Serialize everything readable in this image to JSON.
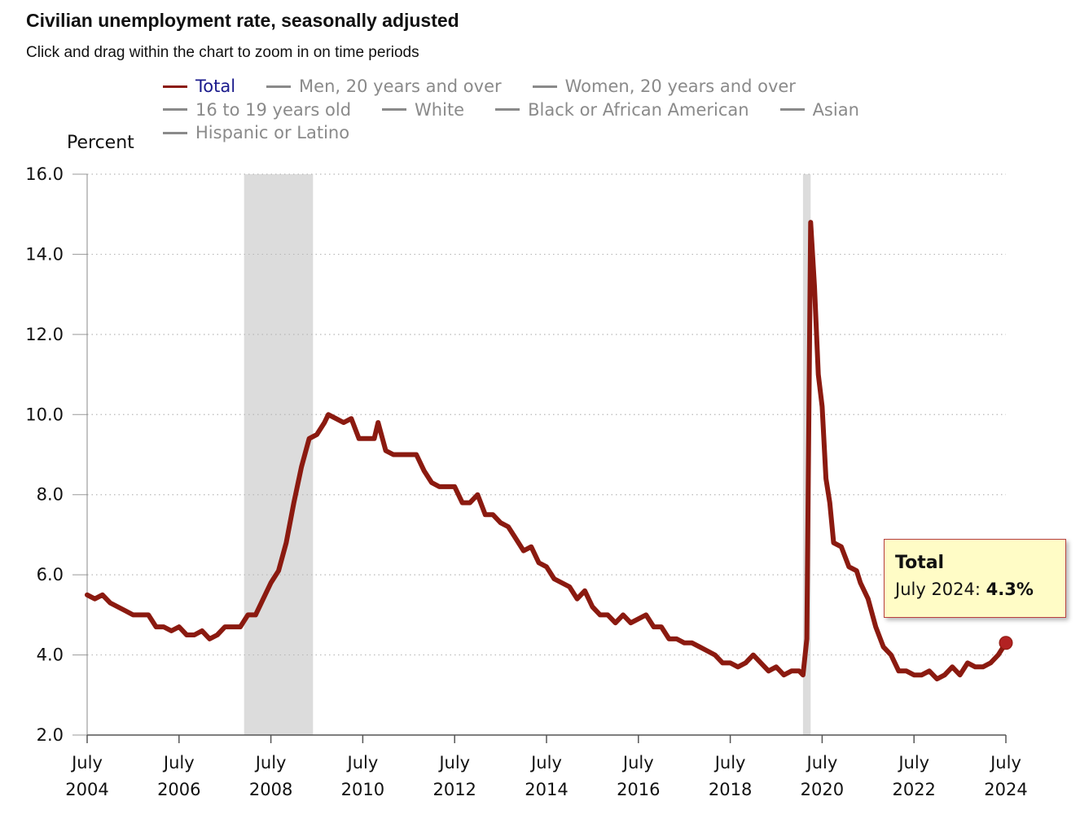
{
  "header": {
    "title": "Civilian unemployment rate, seasonally adjusted",
    "subtitle": "Click and drag within the chart to zoom in on time periods"
  },
  "legend": {
    "items": [
      {
        "label": "Total",
        "active": true
      },
      {
        "label": "Men, 20 years and over",
        "active": false
      },
      {
        "label": "Women, 20 years and over",
        "active": false
      },
      {
        "label": "16 to 19 years old",
        "active": false
      },
      {
        "label": "White",
        "active": false
      },
      {
        "label": "Black or African American",
        "active": false
      },
      {
        "label": "Asian",
        "active": false
      },
      {
        "label": "Hispanic or Latino",
        "active": false
      }
    ]
  },
  "tooltip": {
    "series": "Total",
    "date": "July 2024",
    "value": "4.3%"
  },
  "colors": {
    "series_line": "#8b1a10",
    "recession_band": "#dcdcdc",
    "inactive_legend": "#8a8a8a",
    "active_legend_text": "#1a1a8c",
    "tooltip_bg": "#fffcc6",
    "tooltip_border": "#b84040"
  },
  "chart_data": {
    "type": "line",
    "title": "Civilian unemployment rate, seasonally adjusted",
    "ylabel": "Percent",
    "xlabel": "",
    "ylim": [
      2.0,
      16.0
    ],
    "yticks": [
      "2.0",
      "4.0",
      "6.0",
      "8.0",
      "10.0",
      "12.0",
      "14.0",
      "16.0"
    ],
    "xticks": [
      {
        "month": "July",
        "year": "2004"
      },
      {
        "month": "July",
        "year": "2006"
      },
      {
        "month": "July",
        "year": "2008"
      },
      {
        "month": "July",
        "year": "2010"
      },
      {
        "month": "July",
        "year": "2012"
      },
      {
        "month": "July",
        "year": "2014"
      },
      {
        "month": "July",
        "year": "2016"
      },
      {
        "month": "July",
        "year": "2018"
      },
      {
        "month": "July",
        "year": "2020"
      },
      {
        "month": "July",
        "year": "2022"
      },
      {
        "month": "July",
        "year": "2024"
      }
    ],
    "xrange": [
      "2004-07",
      "2024-07"
    ],
    "grid": "horizontal dotted",
    "legend_position": "top",
    "recessions": [
      [
        "2007-12",
        "2009-06"
      ],
      [
        "2020-02",
        "2020-04"
      ]
    ],
    "series": [
      {
        "name": "Total",
        "points": [
          [
            "2004-07",
            5.5
          ],
          [
            "2004-09",
            5.4
          ],
          [
            "2004-11",
            5.5
          ],
          [
            "2005-01",
            5.3
          ],
          [
            "2005-03",
            5.2
          ],
          [
            "2005-05",
            5.1
          ],
          [
            "2005-07",
            5.0
          ],
          [
            "2005-09",
            5.0
          ],
          [
            "2005-11",
            5.0
          ],
          [
            "2006-01",
            4.7
          ],
          [
            "2006-03",
            4.7
          ],
          [
            "2006-05",
            4.6
          ],
          [
            "2006-07",
            4.7
          ],
          [
            "2006-09",
            4.5
          ],
          [
            "2006-11",
            4.5
          ],
          [
            "2007-01",
            4.6
          ],
          [
            "2007-03",
            4.4
          ],
          [
            "2007-05",
            4.5
          ],
          [
            "2007-07",
            4.7
          ],
          [
            "2007-09",
            4.7
          ],
          [
            "2007-11",
            4.7
          ],
          [
            "2008-01",
            5.0
          ],
          [
            "2008-03",
            5.0
          ],
          [
            "2008-05",
            5.4
          ],
          [
            "2008-07",
            5.8
          ],
          [
            "2008-09",
            6.1
          ],
          [
            "2008-11",
            6.8
          ],
          [
            "2009-01",
            7.8
          ],
          [
            "2009-03",
            8.7
          ],
          [
            "2009-05",
            9.4
          ],
          [
            "2009-07",
            9.5
          ],
          [
            "2009-09",
            9.8
          ],
          [
            "2009-10",
            10.0
          ],
          [
            "2009-12",
            9.9
          ],
          [
            "2010-02",
            9.8
          ],
          [
            "2010-04",
            9.9
          ],
          [
            "2010-06",
            9.4
          ],
          [
            "2010-08",
            9.4
          ],
          [
            "2010-10",
            9.4
          ],
          [
            "2010-11",
            9.8
          ],
          [
            "2011-01",
            9.1
          ],
          [
            "2011-03",
            9.0
          ],
          [
            "2011-05",
            9.0
          ],
          [
            "2011-07",
            9.0
          ],
          [
            "2011-09",
            9.0
          ],
          [
            "2011-11",
            8.6
          ],
          [
            "2012-01",
            8.3
          ],
          [
            "2012-03",
            8.2
          ],
          [
            "2012-05",
            8.2
          ],
          [
            "2012-07",
            8.2
          ],
          [
            "2012-09",
            7.8
          ],
          [
            "2012-11",
            7.8
          ],
          [
            "2013-01",
            8.0
          ],
          [
            "2013-03",
            7.5
          ],
          [
            "2013-05",
            7.5
          ],
          [
            "2013-07",
            7.3
          ],
          [
            "2013-09",
            7.2
          ],
          [
            "2013-11",
            6.9
          ],
          [
            "2014-01",
            6.6
          ],
          [
            "2014-03",
            6.7
          ],
          [
            "2014-05",
            6.3
          ],
          [
            "2014-07",
            6.2
          ],
          [
            "2014-09",
            5.9
          ],
          [
            "2014-11",
            5.8
          ],
          [
            "2015-01",
            5.7
          ],
          [
            "2015-03",
            5.4
          ],
          [
            "2015-05",
            5.6
          ],
          [
            "2015-07",
            5.2
          ],
          [
            "2015-09",
            5.0
          ],
          [
            "2015-11",
            5.0
          ],
          [
            "2016-01",
            4.8
          ],
          [
            "2016-03",
            5.0
          ],
          [
            "2016-05",
            4.8
          ],
          [
            "2016-07",
            4.9
          ],
          [
            "2016-09",
            5.0
          ],
          [
            "2016-11",
            4.7
          ],
          [
            "2017-01",
            4.7
          ],
          [
            "2017-03",
            4.4
          ],
          [
            "2017-05",
            4.4
          ],
          [
            "2017-07",
            4.3
          ],
          [
            "2017-09",
            4.3
          ],
          [
            "2017-11",
            4.2
          ],
          [
            "2018-01",
            4.1
          ],
          [
            "2018-03",
            4.0
          ],
          [
            "2018-05",
            3.8
          ],
          [
            "2018-07",
            3.8
          ],
          [
            "2018-09",
            3.7
          ],
          [
            "2018-11",
            3.8
          ],
          [
            "2019-01",
            4.0
          ],
          [
            "2019-03",
            3.8
          ],
          [
            "2019-05",
            3.6
          ],
          [
            "2019-07",
            3.7
          ],
          [
            "2019-09",
            3.5
          ],
          [
            "2019-11",
            3.6
          ],
          [
            "2020-01",
            3.6
          ],
          [
            "2020-02",
            3.5
          ],
          [
            "2020-03",
            4.4
          ],
          [
            "2020-04",
            14.8
          ],
          [
            "2020-05",
            13.2
          ],
          [
            "2020-06",
            11.0
          ],
          [
            "2020-07",
            10.2
          ],
          [
            "2020-08",
            8.4
          ],
          [
            "2020-09",
            7.8
          ],
          [
            "2020-10",
            6.8
          ],
          [
            "2020-12",
            6.7
          ],
          [
            "2021-02",
            6.2
          ],
          [
            "2021-04",
            6.1
          ],
          [
            "2021-05",
            5.8
          ],
          [
            "2021-07",
            5.4
          ],
          [
            "2021-09",
            4.7
          ],
          [
            "2021-11",
            4.2
          ],
          [
            "2022-01",
            4.0
          ],
          [
            "2022-03",
            3.6
          ],
          [
            "2022-05",
            3.6
          ],
          [
            "2022-07",
            3.5
          ],
          [
            "2022-09",
            3.5
          ],
          [
            "2022-11",
            3.6
          ],
          [
            "2023-01",
            3.4
          ],
          [
            "2023-03",
            3.5
          ],
          [
            "2023-05",
            3.7
          ],
          [
            "2023-07",
            3.5
          ],
          [
            "2023-09",
            3.8
          ],
          [
            "2023-11",
            3.7
          ],
          [
            "2024-01",
            3.7
          ],
          [
            "2024-03",
            3.8
          ],
          [
            "2024-05",
            4.0
          ],
          [
            "2024-07",
            4.3
          ]
        ]
      }
    ]
  }
}
